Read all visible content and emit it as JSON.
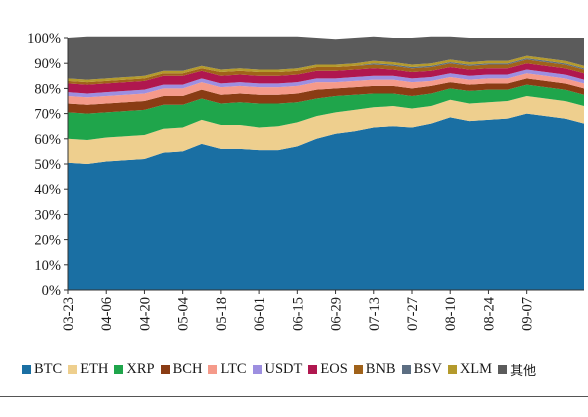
{
  "chart_data": {
    "type": "area",
    "stacked": true,
    "xlabel": "",
    "ylabel": "",
    "y_tick_labels": [
      "0%",
      "10%",
      "20%",
      "30%",
      "40%",
      "50%",
      "60%",
      "70%",
      "80%",
      "90%",
      "100%"
    ],
    "x_tick_labels": [
      "03-23",
      "04-06",
      "04-20",
      "05-04",
      "05-18",
      "06-01",
      "06-15",
      "06-29",
      "07-13",
      "07-27",
      "08-10",
      "08-24",
      "09-07"
    ],
    "x_domain": [
      0,
      189
    ],
    "ylim": [
      0,
      100
    ],
    "grid": false,
    "legend_position": "bottom",
    "x": [
      0,
      7,
      14,
      21,
      28,
      35,
      42,
      49,
      56,
      63,
      70,
      77,
      84,
      91,
      98,
      105,
      112,
      119,
      126,
      133,
      140,
      147,
      154,
      161,
      168,
      175,
      182,
      189
    ],
    "series": [
      {
        "name": "BTC",
        "color": "#1a6fa3",
        "values": [
          50.5,
          50.0,
          51.0,
          51.5,
          52.0,
          54.5,
          55.0,
          58.0,
          56.0,
          56.0,
          55.5,
          55.5,
          57.0,
          60.0,
          62.0,
          63.0,
          64.5,
          65.0,
          64.5,
          66.0,
          68.5,
          67.0,
          67.5,
          68.0,
          70.0,
          69.0,
          68.0,
          66.0
        ]
      },
      {
        "name": "ETH",
        "color": "#eecf8e",
        "values": [
          9.5,
          9.5,
          9.5,
          9.5,
          9.5,
          9.5,
          9.5,
          9.5,
          9.5,
          9.5,
          9.0,
          9.5,
          9.5,
          9.0,
          8.5,
          8.5,
          8.0,
          8.0,
          7.5,
          7.0,
          7.0,
          7.0,
          7.0,
          7.0,
          7.0,
          7.0,
          7.0,
          7.0
        ]
      },
      {
        "name": "XRP",
        "color": "#1fa54b",
        "values": [
          10.5,
          10.5,
          10.0,
          10.0,
          10.0,
          9.5,
          9.0,
          8.5,
          8.5,
          9.0,
          9.5,
          9.0,
          8.0,
          7.0,
          6.5,
          6.0,
          5.5,
          5.0,
          5.0,
          5.0,
          4.5,
          5.0,
          5.0,
          4.5,
          4.5,
          4.5,
          4.5,
          4.5
        ]
      },
      {
        "name": "BCH",
        "color": "#8a3c14",
        "values": [
          3.5,
          3.5,
          3.5,
          3.5,
          3.5,
          3.5,
          3.5,
          3.5,
          3.5,
          3.5,
          3.5,
          3.5,
          3.5,
          3.5,
          3.0,
          3.0,
          3.0,
          3.0,
          3.0,
          3.0,
          2.5,
          2.5,
          2.5,
          2.5,
          2.5,
          2.5,
          2.5,
          2.5
        ]
      },
      {
        "name": "LTC",
        "color": "#f59a8a",
        "values": [
          3.0,
          3.0,
          3.0,
          3.0,
          3.0,
          3.0,
          3.0,
          3.0,
          3.0,
          3.0,
          3.0,
          3.0,
          3.0,
          3.0,
          2.5,
          2.5,
          2.5,
          2.5,
          2.5,
          2.0,
          2.0,
          2.0,
          2.0,
          2.0,
          2.0,
          2.0,
          2.0,
          2.0
        ]
      },
      {
        "name": "USDT",
        "color": "#9d8fe0",
        "values": [
          1.5,
          1.5,
          1.5,
          1.5,
          1.5,
          1.5,
          1.5,
          1.5,
          1.5,
          1.5,
          1.5,
          1.5,
          1.5,
          1.5,
          1.5,
          1.5,
          1.5,
          1.5,
          1.5,
          1.5,
          1.5,
          1.5,
          1.5,
          1.5,
          1.5,
          1.5,
          1.5,
          1.5
        ]
      },
      {
        "name": "EOS",
        "color": "#b0174f",
        "values": [
          3.5,
          3.5,
          3.5,
          3.5,
          3.5,
          3.5,
          3.5,
          3.0,
          3.0,
          3.0,
          3.0,
          3.0,
          3.0,
          3.0,
          3.0,
          3.0,
          3.0,
          2.5,
          2.5,
          2.5,
          2.5,
          2.5,
          2.5,
          2.5,
          2.5,
          2.5,
          2.5,
          2.5
        ]
      },
      {
        "name": "BNB",
        "color": "#a0621a",
        "values": [
          1.0,
          1.0,
          1.0,
          1.0,
          1.0,
          1.0,
          1.0,
          1.0,
          1.5,
          1.5,
          1.5,
          1.5,
          1.5,
          1.5,
          1.5,
          1.5,
          1.5,
          1.5,
          1.5,
          1.5,
          1.5,
          1.5,
          1.5,
          1.5,
          1.5,
          1.5,
          1.5,
          1.5
        ]
      },
      {
        "name": "BSV",
        "color": "#5c6e82",
        "values": [
          0.0,
          0.0,
          0.0,
          0.0,
          0.0,
          0.0,
          0.0,
          0.0,
          0.0,
          0.0,
          0.0,
          0.0,
          0.0,
          0.0,
          0.0,
          0.0,
          0.5,
          0.5,
          0.5,
          0.5,
          0.5,
          0.5,
          0.5,
          0.5,
          0.5,
          0.5,
          0.5,
          0.5
        ]
      },
      {
        "name": "XLM",
        "color": "#b49a2c",
        "values": [
          1.0,
          1.0,
          1.0,
          1.0,
          1.0,
          1.0,
          1.0,
          1.0,
          1.0,
          1.0,
          1.0,
          1.0,
          1.0,
          1.0,
          1.0,
          1.0,
          1.0,
          1.0,
          1.0,
          1.0,
          1.0,
          1.0,
          1.0,
          1.0,
          1.0,
          1.0,
          1.0,
          1.0
        ]
      },
      {
        "name": "其他",
        "color": "#5b5b5b",
        "values": [
          16.0,
          17.0,
          16.5,
          16.0,
          15.5,
          13.5,
          13.5,
          11.5,
          13.0,
          12.5,
          13.0,
          13.0,
          12.5,
          10.5,
          10.0,
          10.0,
          9.5,
          9.5,
          10.5,
          10.5,
          9.0,
          9.5,
          9.0,
          9.0,
          7.0,
          8.0,
          9.0,
          11.0
        ]
      }
    ]
  }
}
